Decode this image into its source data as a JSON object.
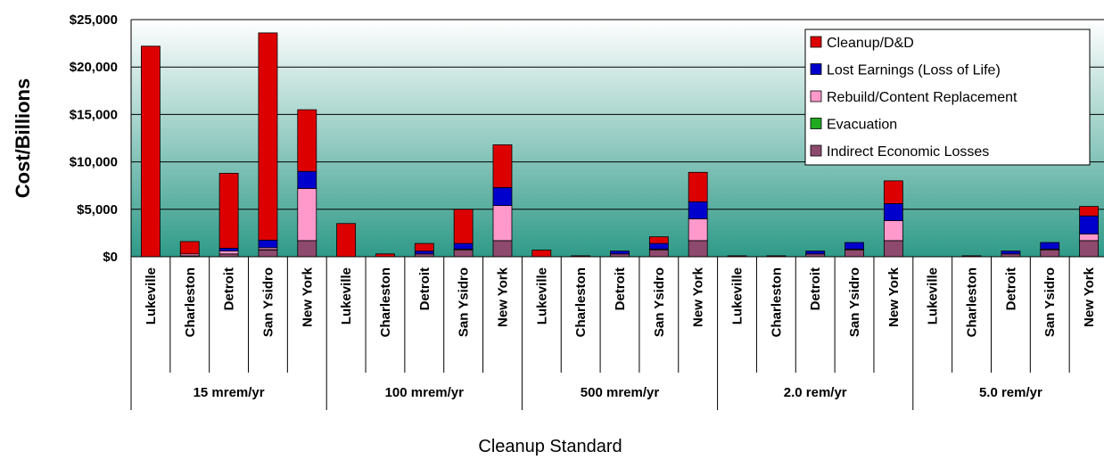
{
  "chart_data": {
    "type": "bar",
    "stacked": true,
    "xlabel": "Cleanup Standard",
    "ylabel": "Cost/Billions",
    "ylim": [
      0,
      25000
    ],
    "y_ticks": [
      "$0",
      "$5,000",
      "$10,000",
      "$15,000",
      "$20,000",
      "$25,000"
    ],
    "y_tick_values": [
      0,
      5000,
      10000,
      15000,
      20000,
      25000
    ],
    "grid": true,
    "legend_position": "top-right",
    "groups": [
      "15 mrem/yr",
      "100 mrem/yr",
      "500 mrem/yr",
      "2.0 rem/yr",
      "5.0 rem/yr"
    ],
    "categories_per_group": [
      "Lukeville",
      "Charleston",
      "Detroit",
      "San Ysidro",
      "New York"
    ],
    "series": [
      {
        "name": "Indirect Economic Losses",
        "color": "#8e4a6e",
        "values": [
          0,
          100,
          300,
          700,
          1700,
          0,
          0,
          300,
          700,
          1700,
          0,
          0,
          300,
          700,
          1700,
          0,
          0,
          300,
          700,
          1700,
          0,
          0,
          300,
          700,
          1700
        ]
      },
      {
        "name": "Evacuation",
        "color": "#22aa22",
        "values": [
          0,
          0,
          0,
          50,
          0,
          0,
          0,
          0,
          0,
          0,
          0,
          0,
          0,
          0,
          0,
          0,
          0,
          0,
          0,
          0,
          0,
          0,
          0,
          0,
          0
        ]
      },
      {
        "name": "Rebuild/Content Replacement",
        "color": "#ff99cc",
        "values": [
          0,
          200,
          300,
          200,
          5500,
          0,
          0,
          0,
          100,
          3700,
          0,
          0,
          0,
          100,
          2300,
          0,
          0,
          0,
          100,
          2100,
          0,
          0,
          0,
          100,
          700
        ]
      },
      {
        "name": "Lost Earnings (Loss of Life)",
        "color": "#0000cc",
        "values": [
          0,
          0,
          300,
          800,
          1800,
          0,
          0,
          300,
          600,
          1900,
          0,
          0,
          300,
          600,
          1800,
          0,
          0,
          300,
          700,
          1800,
          0,
          0,
          300,
          700,
          1900
        ]
      },
      {
        "name": "Cleanup/D&D",
        "color": "#dd0000",
        "values": [
          22200,
          1300,
          7900,
          21850,
          6500,
          3500,
          300,
          800,
          3600,
          4500,
          700,
          100,
          0,
          700,
          3100,
          100,
          100,
          0,
          0,
          2400,
          0,
          100,
          0,
          0,
          1000
        ]
      }
    ],
    "legend_order": [
      "Cleanup/D&D",
      "Lost Earnings (Loss of Life)",
      "Rebuild/Content Replacement",
      "Evacuation",
      "Indirect Economic Losses"
    ]
  }
}
